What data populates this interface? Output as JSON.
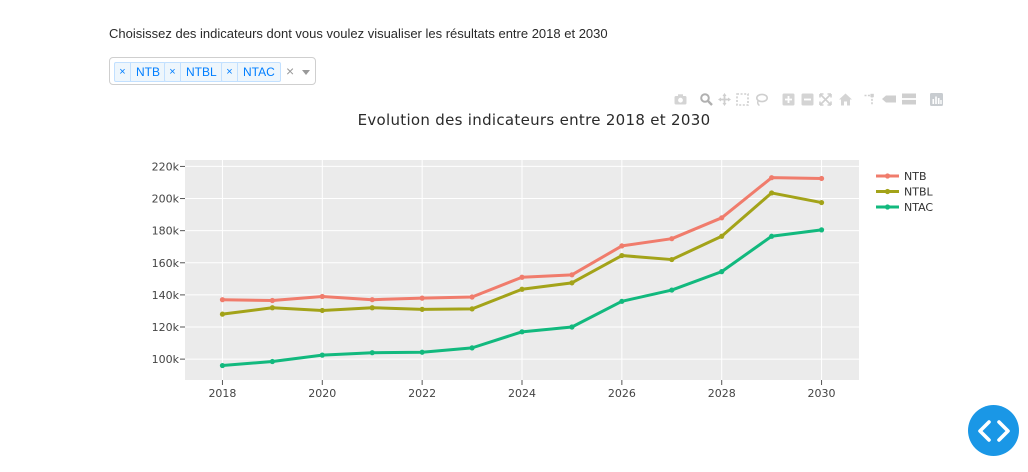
{
  "prompt": "Choisissez des indicateurs dont vous voulez visualiser les résultats entre 2018 et 2030",
  "selector": {
    "tags": [
      "NTB",
      "NTBL",
      "NTAC"
    ],
    "remove_glyph": "×",
    "clear_glyph": "×"
  },
  "modebar": [
    "camera-icon",
    "zoom-icon",
    "pan-icon",
    "box-select-icon",
    "lasso-select-icon",
    "zoom-in-icon",
    "zoom-out-icon",
    "autoscale-icon",
    "reset-axes-icon",
    "spike-lines-icon",
    "hover-closest-icon",
    "hover-compare-icon",
    "plotly-logo-icon"
  ],
  "colors": {
    "tag_text": "#007eff",
    "plot_bg": "#ebebeb",
    "fab": "#1a97e6"
  },
  "chart_data": {
    "type": "line",
    "title": "Evolution des indicateurs entre 2018 et 2030",
    "x": [
      2018,
      2019,
      2020,
      2021,
      2022,
      2023,
      2024,
      2025,
      2026,
      2027,
      2028,
      2029,
      2030
    ],
    "xticks": [
      2018,
      2020,
      2022,
      2024,
      2026,
      2028,
      2030
    ],
    "yticks": [
      100000,
      120000,
      140000,
      160000,
      180000,
      200000,
      220000
    ],
    "ytick_labels": [
      "100k",
      "120k",
      "140k",
      "160k",
      "180k",
      "200k",
      "220k"
    ],
    "xlim": [
      2017.25,
      2030.75
    ],
    "ylim": [
      87000,
      224000
    ],
    "grid": true,
    "legend": "top-right",
    "series": [
      {
        "name": "NTB",
        "color": "#f07c6c",
        "values": [
          137000,
          136500,
          139000,
          137000,
          138000,
          138700,
          151000,
          152500,
          170500,
          175000,
          188000,
          213000,
          212500
        ]
      },
      {
        "name": "NTBL",
        "color": "#a3a319",
        "values": [
          128000,
          132000,
          130300,
          132000,
          131000,
          131300,
          143500,
          147500,
          164500,
          162000,
          176500,
          203500,
          197500
        ]
      },
      {
        "name": "NTAC",
        "color": "#12b97e",
        "values": [
          96000,
          98500,
          102500,
          104000,
          104300,
          107000,
          117000,
          120000,
          136000,
          143000,
          154500,
          176500,
          180500
        ]
      }
    ]
  }
}
